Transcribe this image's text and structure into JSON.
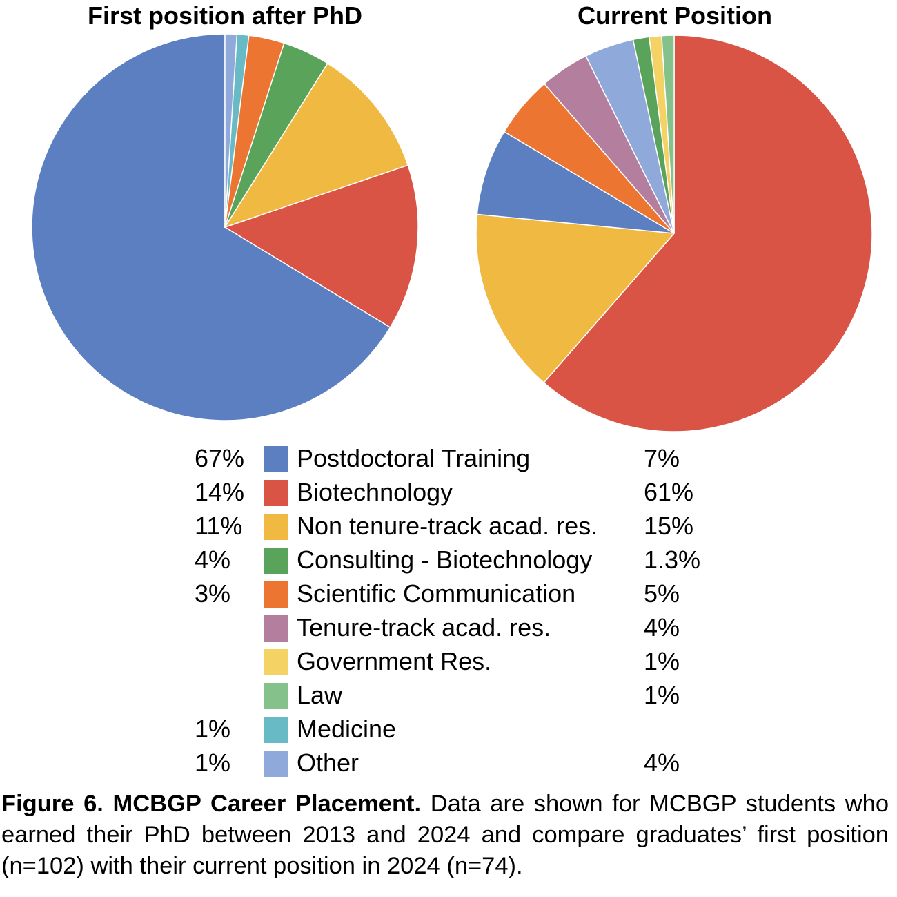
{
  "chart_data": [
    {
      "type": "pie",
      "title": "First position after PhD",
      "slices": [
        {
          "category": "Postdoctoral Training",
          "value": 67,
          "label": "67%"
        },
        {
          "category": "Biotechnology",
          "value": 14,
          "label": "14%"
        },
        {
          "category": "Non tenure-track acad. res.",
          "value": 11,
          "label": "11%"
        },
        {
          "category": "Consulting - Biotechnology",
          "value": 4,
          "label": "4%"
        },
        {
          "category": "Scientific Communication",
          "value": 3,
          "label": "3%"
        },
        {
          "category": "Medicine",
          "value": 1,
          "label": "1%"
        },
        {
          "category": "Other",
          "value": 1,
          "label": "1%"
        }
      ]
    },
    {
      "type": "pie",
      "title": "Current Position",
      "slices": [
        {
          "category": "Biotechnology",
          "value": 61,
          "label": "61%"
        },
        {
          "category": "Non tenure-track acad. res.",
          "value": 15,
          "label": "15%"
        },
        {
          "category": "Postdoctoral Training",
          "value": 7,
          "label": "7%"
        },
        {
          "category": "Scientific Communication",
          "value": 5,
          "label": "5%"
        },
        {
          "category": "Tenure-track acad. res.",
          "value": 4,
          "label": "4%"
        },
        {
          "category": "Other",
          "value": 4,
          "label": "4%"
        },
        {
          "category": "Consulting - Biotechnology",
          "value": 1.3,
          "label": "1.3%"
        },
        {
          "category": "Government Res.",
          "value": 1,
          "label": "1%"
        },
        {
          "category": "Law",
          "value": 1,
          "label": "1%"
        }
      ]
    }
  ],
  "legend": [
    {
      "category": "Postdoctoral Training",
      "color": "#5b7fc0",
      "first": "67%",
      "current": "7%"
    },
    {
      "category": "Biotechnology",
      "color": "#d95444",
      "first": "14%",
      "current": "61%"
    },
    {
      "category": "Non tenure-track acad. res.",
      "color": "#f0b942",
      "first": "11%",
      "current": "15%"
    },
    {
      "category": "Consulting - Biotechnology",
      "color": "#59a35b",
      "first": "4%",
      "current": "1.3%"
    },
    {
      "category": "Scientific Communication",
      "color": "#ec7532",
      "first": "3%",
      "current": "5%"
    },
    {
      "category": "Tenure-track acad. res.",
      "color": "#b47f9f",
      "first": "",
      "current": "4%"
    },
    {
      "category": "Government Res.",
      "color": "#f4d264",
      "first": "",
      "current": "1%"
    },
    {
      "category": "Law",
      "color": "#85c28b",
      "first": "",
      "current": "1%"
    },
    {
      "category": "Medicine",
      "color": "#68bbc4",
      "first": "1%",
      "current": ""
    },
    {
      "category": "Other",
      "color": "#8ea9da",
      "first": "1%",
      "current": "4%"
    }
  ],
  "caption": {
    "bold": "Figure 6. MCBGP Career Placement.",
    "text": " Data are shown for MCBGP students who earned their PhD between 2013 and 2024 and compare graduates’ first position (n=102) with their current position in 2024 (n=74)."
  }
}
